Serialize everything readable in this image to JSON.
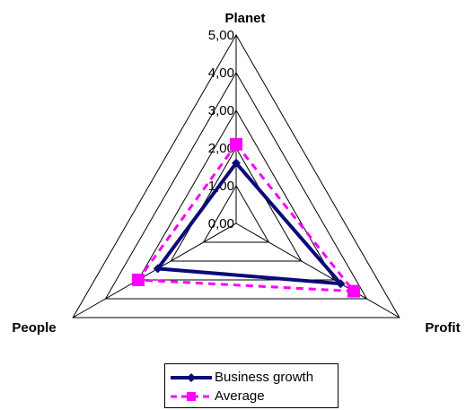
{
  "chart_data": {
    "type": "radar",
    "categories": [
      "Planet",
      "Profit",
      "People"
    ],
    "rlim": [
      0,
      5
    ],
    "ticks": [
      "0,00",
      "1,00",
      "2,00",
      "3,00",
      "4,00",
      "5,00"
    ],
    "series": [
      {
        "name": "Business growth",
        "values": [
          1.6,
          3.2,
          2.4
        ],
        "color": "#0a0a7a",
        "style": "solid",
        "marker": "diamond"
      },
      {
        "name": "Average",
        "values": [
          2.1,
          3.6,
          3.0
        ],
        "color": "#ff00ff",
        "style": "dashed",
        "marker": "square"
      }
    ],
    "legend": "bottom"
  }
}
